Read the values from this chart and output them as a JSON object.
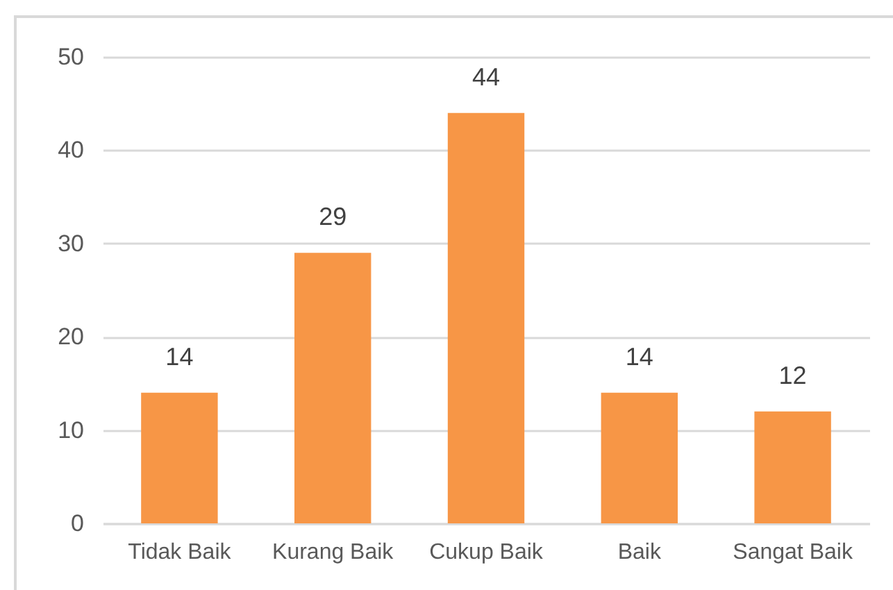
{
  "chart_data": {
    "type": "bar",
    "categories": [
      "Tidak Baik",
      "Kurang Baik",
      "Cukup Baik",
      "Baik",
      "Sangat Baik"
    ],
    "values": [
      14,
      29,
      44,
      14,
      12
    ],
    "color": "#f79646",
    "ylim": [
      0,
      50
    ],
    "yticks": [
      0,
      10,
      20,
      30,
      40,
      50
    ],
    "grid": "y",
    "data_labels": true
  }
}
